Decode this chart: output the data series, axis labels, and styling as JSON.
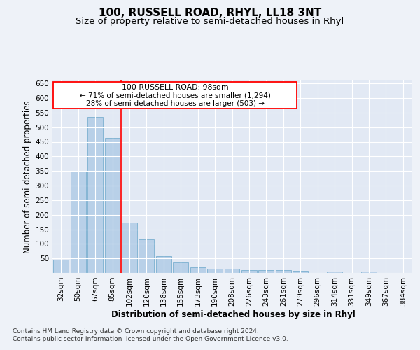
{
  "title": "100, RUSSELL ROAD, RHYL, LL18 3NT",
  "subtitle": "Size of property relative to semi-detached houses in Rhyl",
  "xlabel": "Distribution of semi-detached houses by size in Rhyl",
  "ylabel": "Number of semi-detached properties",
  "categories": [
    "32sqm",
    "50sqm",
    "67sqm",
    "85sqm",
    "102sqm",
    "120sqm",
    "138sqm",
    "155sqm",
    "173sqm",
    "190sqm",
    "208sqm",
    "226sqm",
    "243sqm",
    "261sqm",
    "279sqm",
    "296sqm",
    "314sqm",
    "331sqm",
    "349sqm",
    "367sqm",
    "384sqm"
  ],
  "values": [
    46,
    349,
    535,
    464,
    174,
    116,
    58,
    35,
    20,
    15,
    15,
    10,
    9,
    9,
    8,
    0,
    6,
    0,
    5,
    0,
    0
  ],
  "bar_color": "#b8d0e8",
  "bar_edge_color": "#7aafd0",
  "vline_x": 3.5,
  "annotation_title": "100 RUSSELL ROAD: 98sqm",
  "annotation_line1": "← 71% of semi-detached houses are smaller (1,294)",
  "annotation_line2": "28% of semi-detached houses are larger (503) →",
  "ylim": [
    0,
    660
  ],
  "yticks": [
    0,
    50,
    100,
    150,
    200,
    250,
    300,
    350,
    400,
    450,
    500,
    550,
    600,
    650
  ],
  "footer_line1": "Contains HM Land Registry data © Crown copyright and database right 2024.",
  "footer_line2": "Contains public sector information licensed under the Open Government Licence v3.0.",
  "bg_color": "#eef2f8",
  "plot_bg_color": "#e2e9f4",
  "title_fontsize": 11,
  "subtitle_fontsize": 9.5,
  "axis_label_fontsize": 8.5,
  "tick_fontsize": 7.5,
  "footer_fontsize": 6.5
}
